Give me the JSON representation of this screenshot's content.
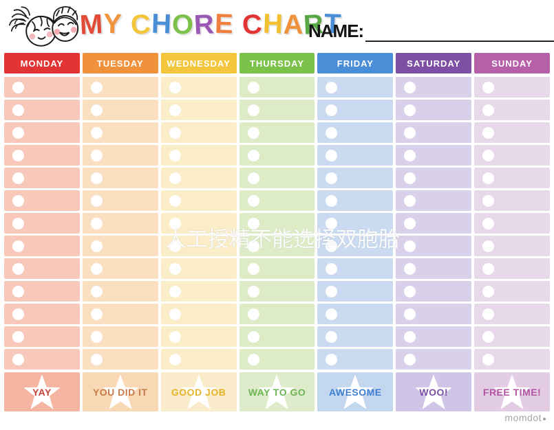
{
  "header": {
    "illustration": "two-kids-doodle-faces",
    "title_text": "MY CHORE CHART",
    "title_letters": [
      {
        "ch": "M",
        "color": "#e14b38"
      },
      {
        "ch": "Y",
        "color": "#f09440"
      },
      {
        "ch": " ",
        "color": ""
      },
      {
        "ch": "C",
        "color": "#f2c53a"
      },
      {
        "ch": "H",
        "color": "#4b8ed8"
      },
      {
        "ch": "O",
        "color": "#7cc24a"
      },
      {
        "ch": "R",
        "color": "#9b59b6"
      },
      {
        "ch": "E",
        "color": "#f08040"
      },
      {
        "ch": " ",
        "color": ""
      },
      {
        "ch": "C",
        "color": "#e23434"
      },
      {
        "ch": "H",
        "color": "#f2c030"
      },
      {
        "ch": "A",
        "color": "#f0923c"
      },
      {
        "ch": "R",
        "color": "#5aa845"
      },
      {
        "ch": "T",
        "color": "#4b8ed8"
      }
    ],
    "name_label": "NAME:",
    "name_value": ""
  },
  "chart": {
    "rows": 13,
    "columns": [
      {
        "day": "MONDAY",
        "header_color": "#e23434",
        "cell_color": "#f8c9bb",
        "footer_color": "#f5b5a3",
        "footer_label": "YAY",
        "footer_text_color": "#c8403a"
      },
      {
        "day": "TUESDAY",
        "header_color": "#f0923c",
        "cell_color": "#fadfc1",
        "footer_color": "#f9d8b6",
        "footer_label": "YOU DID IT",
        "footer_text_color": "#c77b4a"
      },
      {
        "day": "WEDNESDAY",
        "header_color": "#f2c53a",
        "cell_color": "#faedc7",
        "footer_color": "#faeccb",
        "footer_label": "GOOD JOB",
        "footer_text_color": "#e3b429"
      },
      {
        "day": "THURSDAY",
        "header_color": "#7cc24a",
        "cell_color": "#ddecc7",
        "footer_color": "#dfeccb",
        "footer_label": "WAY TO GO",
        "footer_text_color": "#6cb454"
      },
      {
        "day": "FRIDAY",
        "header_color": "#4b8ed8",
        "cell_color": "#cadaf0",
        "footer_color": "#c3d7ef",
        "footer_label": "AWESOME",
        "footer_text_color": "#3f7fd1"
      },
      {
        "day": "SATURDAY",
        "header_color": "#7d4fa5",
        "cell_color": "#d9d0ea",
        "footer_color": "#cfc5e6",
        "footer_label": "WOO!",
        "footer_text_color": "#7a4fa3"
      },
      {
        "day": "SUNDAY",
        "header_color": "#b560a8",
        "cell_color": "#e8d9ea",
        "footer_color": "#e3cde5",
        "footer_label": "FREE TIME!",
        "footer_text_color": "#b253a3"
      }
    ]
  },
  "watermark": {
    "text": "人工授精不能选择双胞胎",
    "color": "#ffffff"
  },
  "brand": {
    "text": "momdot",
    "color": "#a9a0aa"
  }
}
